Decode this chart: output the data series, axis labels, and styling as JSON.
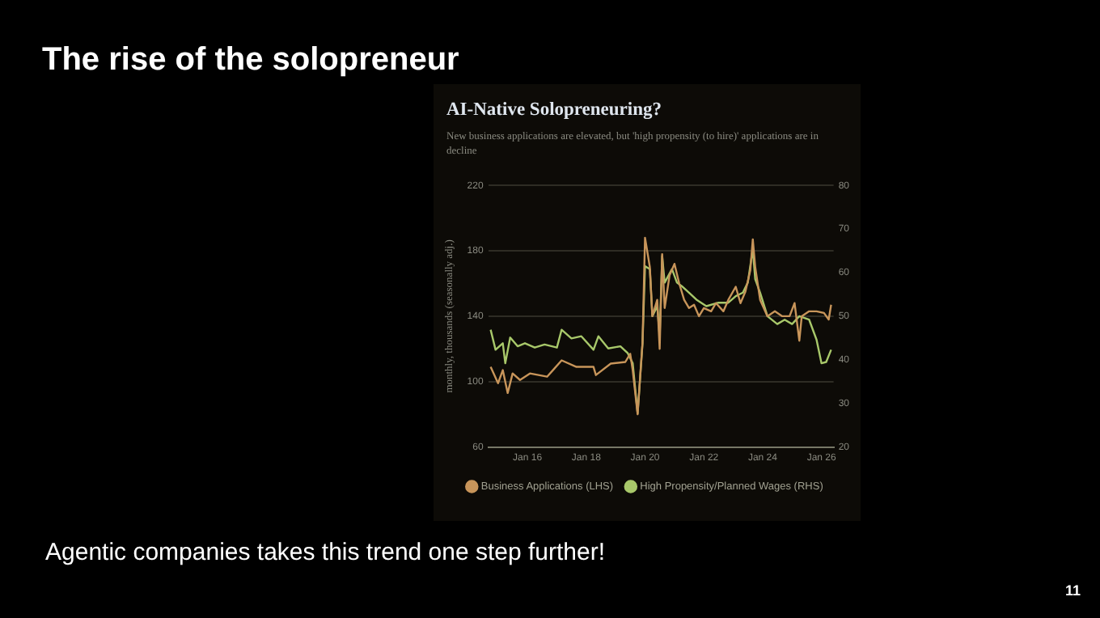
{
  "chart_data": {
    "type": "line",
    "title": "AI-Native Solopreneuring?",
    "subtitle": "New business applications are elevated, but 'high propensity (to hire)' applications are in decline",
    "ylabel": "monthly, thousands (seasonally adj.)",
    "annotations": [
      "The rise of the solopreneur",
      "Agentic companies takes this trend one step further!",
      "11"
    ],
    "xlim": [
      "2014-09",
      "2026-06"
    ],
    "xticks": [
      {
        "value": "2016-01",
        "label": "Jan 16"
      },
      {
        "value": "2018-01",
        "label": "Jan 18"
      },
      {
        "value": "2020-01",
        "label": "Jan 20"
      },
      {
        "value": "2022-01",
        "label": "Jan 22"
      },
      {
        "value": "2024-01",
        "label": "Jan 24"
      },
      {
        "value": "2026-01",
        "label": "Jan 26"
      }
    ],
    "ylim": [
      60,
      220
    ],
    "yticks": [
      60,
      100,
      140,
      180,
      220
    ],
    "y2lim": [
      20,
      80
    ],
    "y2ticks": [
      20,
      30,
      40,
      50,
      60,
      70,
      80
    ],
    "grid": "y",
    "legend": "bottom",
    "marker": "none",
    "line_style": "solid",
    "series": [
      {
        "name": "Business Applications (LHS)",
        "color": "#c8955a",
        "x": [
          "2014-10",
          "2015-01",
          "2015-03",
          "2015-05",
          "2015-07",
          "2015-10",
          "2016-02",
          "2016-09",
          "2016-12",
          "2017-03",
          "2017-09",
          "2018-04",
          "2018-05",
          "2018-11",
          "2019-05",
          "2019-07",
          "2019-08",
          "2019-10",
          "2019-12",
          "2020-01",
          "2020-03",
          "2020-04",
          "2020-06",
          "2020-07",
          "2020-08",
          "2020-09",
          "2020-11",
          "2021-01",
          "2021-03",
          "2021-05",
          "2021-07",
          "2021-09",
          "2021-11",
          "2022-01",
          "2022-04",
          "2022-06",
          "2022-09",
          "2022-11",
          "2023-02",
          "2023-04",
          "2023-06",
          "2023-08",
          "2023-09",
          "2023-10",
          "2023-12",
          "2024-03",
          "2024-06",
          "2024-09",
          "2024-12",
          "2025-02",
          "2025-04",
          "2025-05",
          "2025-08",
          "2025-11",
          "2026-02",
          "2026-04",
          "2026-05"
        ],
        "values": [
          109,
          99,
          107,
          93,
          105,
          101,
          105,
          103,
          108,
          113,
          109,
          109,
          104,
          111,
          112,
          117,
          107,
          80,
          124,
          188,
          170,
          140,
          150,
          120,
          178,
          145,
          165,
          172,
          160,
          150,
          145,
          147,
          140,
          145,
          143,
          148,
          143,
          150,
          158,
          148,
          155,
          168,
          187,
          170,
          150,
          140,
          143,
          140,
          140,
          148,
          125,
          140,
          143,
          143,
          142,
          138,
          147
        ]
      },
      {
        "name": "High Propensity/Planned Wages (RHS)",
        "color": "#a8c86a",
        "axis": "y2",
        "x": [
          "2014-10",
          "2014-12",
          "2015-03",
          "2015-04",
          "2015-06",
          "2015-09",
          "2015-12",
          "2016-04",
          "2016-08",
          "2017-01",
          "2017-03",
          "2017-07",
          "2017-11",
          "2018-04",
          "2018-06",
          "2018-10",
          "2019-03",
          "2019-06",
          "2019-08",
          "2019-10",
          "2019-12",
          "2020-01",
          "2020-03",
          "2020-04",
          "2020-06",
          "2020-07",
          "2020-08",
          "2020-09",
          "2020-12",
          "2021-02",
          "2021-04",
          "2021-07",
          "2021-10",
          "2022-02",
          "2022-07",
          "2022-11",
          "2023-02",
          "2023-05",
          "2023-07",
          "2023-09",
          "2023-10",
          "2023-12",
          "2024-03",
          "2024-07",
          "2024-10",
          "2025-01",
          "2025-04",
          "2025-08",
          "2025-11",
          "2026-01",
          "2026-03",
          "2026-05"
        ],
        "values": [
          46.9,
          42.3,
          43.8,
          39.2,
          45.1,
          43.1,
          43.8,
          42.8,
          43.5,
          42.8,
          46.9,
          44.9,
          45.4,
          42.3,
          45.4,
          42.6,
          43.1,
          41.5,
          39.2,
          27.7,
          43.8,
          61.5,
          60.8,
          50,
          52.3,
          45.4,
          63.8,
          57.7,
          60.8,
          57.7,
          56.9,
          55.4,
          53.8,
          52.3,
          53.1,
          53.1,
          54.6,
          55.4,
          57.7,
          65.4,
          58.5,
          55.4,
          50,
          48.2,
          49.2,
          48.2,
          50,
          49.2,
          44.6,
          39.2,
          39.5,
          42.3
        ]
      }
    ]
  }
}
